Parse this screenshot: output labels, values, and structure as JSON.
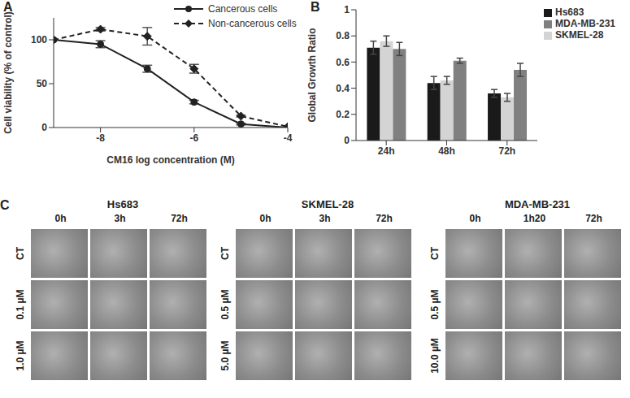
{
  "chart_data": [
    {
      "panel": "A",
      "type": "line",
      "x_label": "CM16 log concentration (M)",
      "y_label": "Cell viability (% of control)",
      "x": [
        -9,
        -8,
        -7,
        -6,
        -5,
        -4
      ],
      "series": [
        {
          "name": "Cancerous cells",
          "color": "#222222",
          "marker": "circle",
          "line_style": "solid",
          "values": [
            100,
            95,
            67,
            29,
            4,
            0
          ],
          "error": [
            0,
            4,
            4,
            2,
            1,
            0
          ]
        },
        {
          "name": "Non-cancerous cells",
          "color": "#222222",
          "marker": "diamond",
          "line_style": "dashed",
          "values": [
            100,
            112,
            104,
            67,
            13,
            1
          ],
          "error": [
            0,
            2,
            10,
            5,
            1,
            0
          ]
        }
      ],
      "xlim": [
        -9,
        -4
      ],
      "xticks": [
        -8,
        -6,
        -4
      ],
      "ylim": [
        0,
        125
      ],
      "yticks": [
        0,
        50,
        100
      ],
      "grid": false,
      "legend": "top-right"
    },
    {
      "panel": "B",
      "type": "bar",
      "y_label": "Global Growth Ratio",
      "categories": [
        "24h",
        "48h",
        "72h"
      ],
      "series": [
        {
          "name": "Hs683",
          "color": "#1a1a1a",
          "values": [
            0.71,
            0.44,
            0.36
          ],
          "error": [
            0.05,
            0.05,
            0.03
          ]
        },
        {
          "name": "SKMEL-28",
          "color": "#d4d4d4",
          "values": [
            0.76,
            0.46,
            0.33
          ],
          "error": [
            0.04,
            0.03,
            0.03
          ]
        },
        {
          "name": "MDA-MB-231",
          "color": "#808080",
          "values": [
            0.7,
            0.61,
            0.54
          ],
          "error": [
            0.05,
            0.02,
            0.05
          ]
        }
      ],
      "ylim": [
        0,
        1
      ],
      "yticks": [
        0,
        0.2,
        0.4,
        0.6,
        0.8,
        1
      ],
      "grid": false,
      "legend": "top-right"
    }
  ],
  "image_panel": {
    "panel": "C",
    "groups": [
      {
        "title": "Hs683",
        "columns": [
          "0h",
          "3h",
          "72h"
        ],
        "rows": [
          "CT",
          "0.1 µM",
          "1.0 µM"
        ]
      },
      {
        "title": "SKMEL-28",
        "columns": [
          "0h",
          "3h",
          "72h"
        ],
        "rows": [
          "CT",
          "0.5 µM",
          "5.0 µM"
        ]
      },
      {
        "title": "MDA-MB-231",
        "columns": [
          "0h",
          "1h20",
          "72h"
        ],
        "rows": [
          "CT",
          "0.5 µM",
          "10.0 µM"
        ]
      }
    ]
  }
}
